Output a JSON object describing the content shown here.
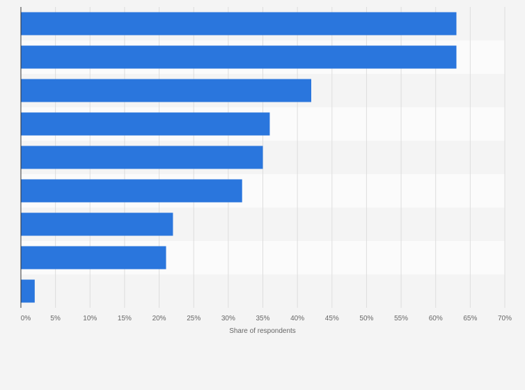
{
  "chart_data": {
    "type": "bar",
    "orientation": "horizontal",
    "categories": [
      "",
      "",
      "",
      "",
      "",
      "",
      "",
      "",
      ""
    ],
    "values": [
      63,
      63,
      42,
      36,
      35,
      32,
      22,
      21,
      2
    ],
    "xlabel": "Share of respondents",
    "ylabel": "",
    "xlim": [
      0,
      70
    ],
    "xticks": [
      0,
      5,
      10,
      15,
      20,
      25,
      30,
      35,
      40,
      45,
      50,
      55,
      60,
      65,
      70
    ],
    "tick_suffix": "%",
    "grid": true,
    "legend": "none",
    "colors": {
      "bar": "#2a76dd",
      "background": "#f4f4f4",
      "band_even": "#f4f4f4",
      "band_odd": "#fbfbfb",
      "gridline": "#dddddd",
      "axis": "#333333",
      "tick_text": "#666666"
    }
  }
}
